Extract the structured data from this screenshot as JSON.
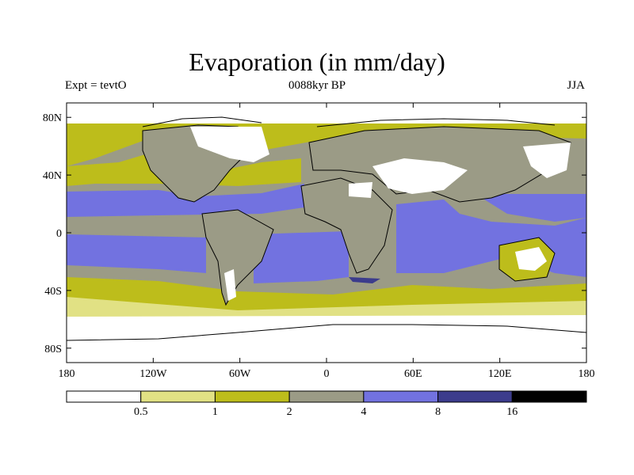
{
  "title": "Evaporation (in mm/day)",
  "subtitle_left": "Expt = tevtO",
  "subtitle_center": "0088kyr BP",
  "subtitle_right": "JJA",
  "lat_ticks": [
    {
      "value": 80,
      "label": "80N"
    },
    {
      "value": 40,
      "label": "40N"
    },
    {
      "value": 0,
      "label": "0"
    },
    {
      "value": -40,
      "label": "40S"
    },
    {
      "value": -80,
      "label": "80S"
    }
  ],
  "lon_ticks": [
    {
      "value": -180,
      "label": "180"
    },
    {
      "value": -120,
      "label": "120W"
    },
    {
      "value": -60,
      "label": "60W"
    },
    {
      "value": 0,
      "label": "0"
    },
    {
      "value": 60,
      "label": "60E"
    },
    {
      "value": 120,
      "label": "120E"
    },
    {
      "value": 180,
      "label": "180"
    }
  ],
  "colorbar": {
    "colors": [
      "#ffffff",
      "#e1e184",
      "#bdbd1b",
      "#9b9b86",
      "#7272e0",
      "#3c3c8c",
      "#000000"
    ],
    "labels": [
      "0.5",
      "1",
      "2",
      "4",
      "8",
      "16"
    ]
  }
}
